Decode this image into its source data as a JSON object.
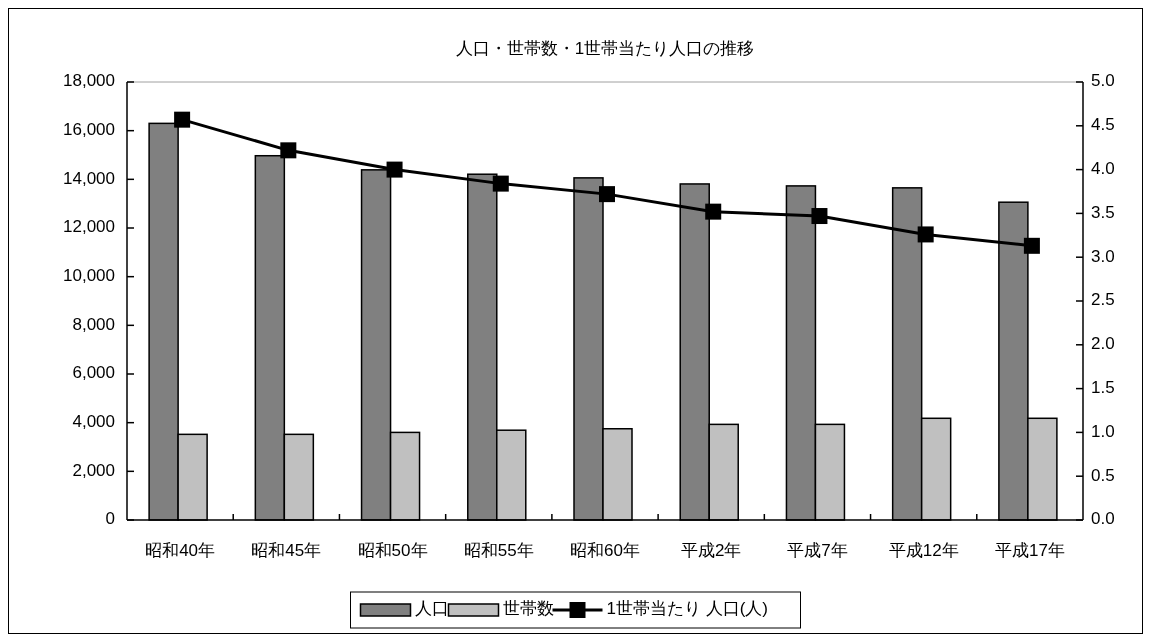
{
  "chart_data": {
    "type": "bar",
    "title": "人口・世帯数・1世帯当たり人口の推移",
    "categories": [
      "昭和40年",
      "昭和45年",
      "昭和50年",
      "昭和55年",
      "昭和60年",
      "平成2年",
      "平成7年",
      "平成12年",
      "平成17年"
    ],
    "series": [
      {
        "name": "人口",
        "color": "#808080",
        "values": [
          16300,
          14970,
          14390,
          14210,
          14060,
          13810,
          13730,
          13650,
          13060
        ]
      },
      {
        "name": "世帯数",
        "color": "#c0c0c0",
        "values": [
          3520,
          3520,
          3600,
          3690,
          3750,
          3930,
          3930,
          4180,
          4180
        ]
      },
      {
        "name": "1世帯当たり 人口(人)",
        "type": "line",
        "axis": "y2",
        "color": "#000000",
        "marker": "square",
        "values": [
          4.57,
          4.22,
          4.0,
          3.84,
          3.72,
          3.52,
          3.47,
          3.26,
          3.13
        ]
      }
    ],
    "ylim": [
      0,
      18000
    ],
    "yticks": [
      {
        "value": 0,
        "label": "0"
      },
      {
        "value": 2000,
        "label": "2,000"
      },
      {
        "value": 4000,
        "label": "4,000"
      },
      {
        "value": 6000,
        "label": "6,000"
      },
      {
        "value": 8000,
        "label": "8,000"
      },
      {
        "value": 10000,
        "label": "10,000"
      },
      {
        "value": 12000,
        "label": "12,000"
      },
      {
        "value": 14000,
        "label": "14,000"
      },
      {
        "value": 16000,
        "label": "16,000"
      },
      {
        "value": 18000,
        "label": "18,000"
      }
    ],
    "y2lim": [
      0,
      5
    ],
    "y2ticks": [
      {
        "value": 0,
        "label": "0.0"
      },
      {
        "value": 0.5,
        "label": "0.5"
      },
      {
        "value": 1,
        "label": "1.0"
      },
      {
        "value": 1.5,
        "label": "1.5"
      },
      {
        "value": 2,
        "label": "2.0"
      },
      {
        "value": 2.5,
        "label": "2.5"
      },
      {
        "value": 3,
        "label": "3.0"
      },
      {
        "value": 3.5,
        "label": "3.5"
      },
      {
        "value": 4,
        "label": "4.0"
      },
      {
        "value": 4.5,
        "label": "4.5"
      },
      {
        "value": 5,
        "label": "5.0"
      }
    ],
    "legend": "bottom"
  }
}
